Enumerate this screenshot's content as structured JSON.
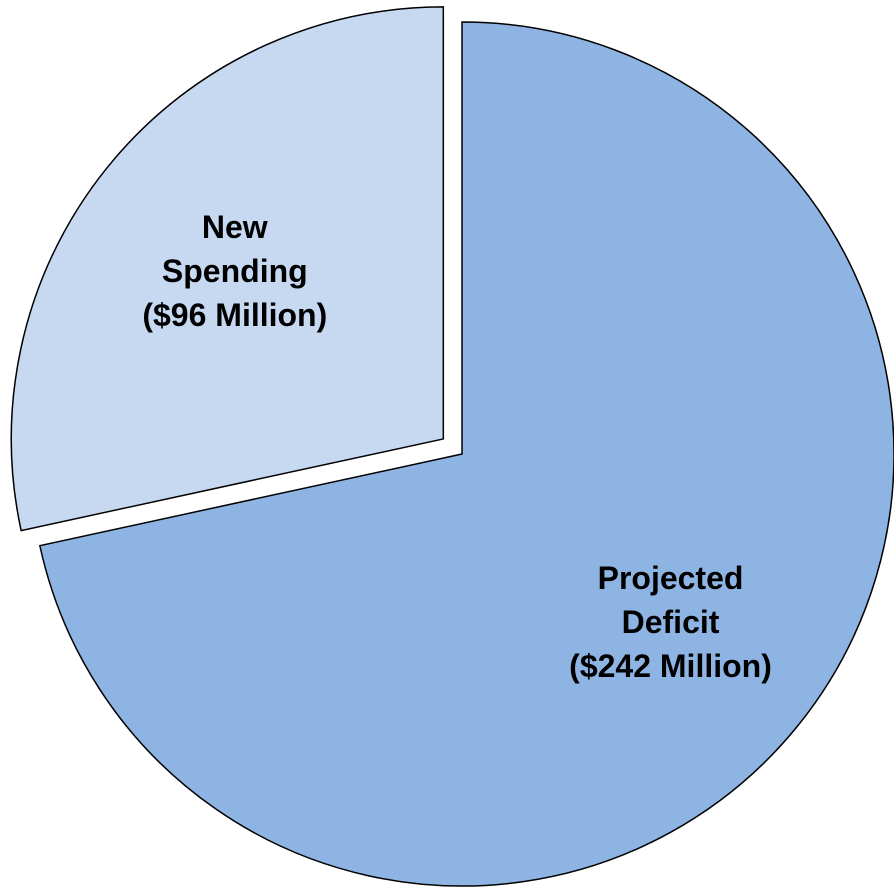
{
  "chart_data": {
    "type": "pie",
    "title": "",
    "legend": "none",
    "unit": "$ Million",
    "slices": [
      {
        "name": "Projected Deficit",
        "value": 242,
        "label_lines": [
          "Projected",
          "Deficit",
          "($242 Million)"
        ],
        "color": "#8eb4e3",
        "exploded": false
      },
      {
        "name": "New Spending",
        "value": 96,
        "label_lines": [
          "New",
          "Spending",
          "($96 Million)"
        ],
        "color": "#c6d9f1",
        "exploded": true
      }
    ]
  }
}
